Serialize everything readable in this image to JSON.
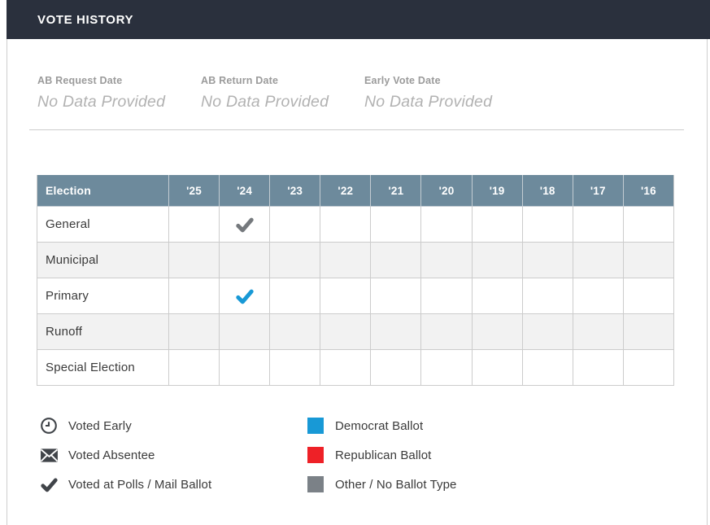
{
  "header": {
    "title": "VOTE HISTORY"
  },
  "summary_fields": [
    {
      "label": "AB Request Date",
      "value": "No Data Provided"
    },
    {
      "label": "AB Return Date",
      "value": "No Data Provided"
    },
    {
      "label": "Early Vote Date",
      "value": "No Data Provided"
    }
  ],
  "table": {
    "first_column_header": "Election",
    "year_columns": [
      "'25",
      "'24",
      "'23",
      "'22",
      "'21",
      "'20",
      "'19",
      "'18",
      "'17",
      "'16"
    ],
    "rows": [
      {
        "label": "General",
        "marks": {
          "'24": "other"
        }
      },
      {
        "label": "Municipal",
        "marks": {}
      },
      {
        "label": "Primary",
        "marks": {
          "'24": "democrat"
        }
      },
      {
        "label": "Runoff",
        "marks": {}
      },
      {
        "label": "Special Election",
        "marks": {}
      }
    ]
  },
  "legend": {
    "left": [
      {
        "icon": "clock-icon",
        "label": "Voted Early"
      },
      {
        "icon": "envelope-icon",
        "label": "Voted Absentee"
      },
      {
        "icon": "check-icon",
        "label": "Voted at Polls / Mail Ballot"
      }
    ],
    "right": [
      {
        "color_key": "democrat",
        "label": "Democrat Ballot"
      },
      {
        "color_key": "republican",
        "label": "Republican Ballot"
      },
      {
        "color_key": "other",
        "label": "Other / No Ballot Type"
      }
    ]
  },
  "colors": {
    "header_bar": "#2a303d",
    "table_header": "#6d8a9c",
    "democrat": "#1899d6",
    "republican": "#ee2127",
    "other": "#7b8187",
    "check_other": "#75797d",
    "legend_icon": "#404449"
  }
}
